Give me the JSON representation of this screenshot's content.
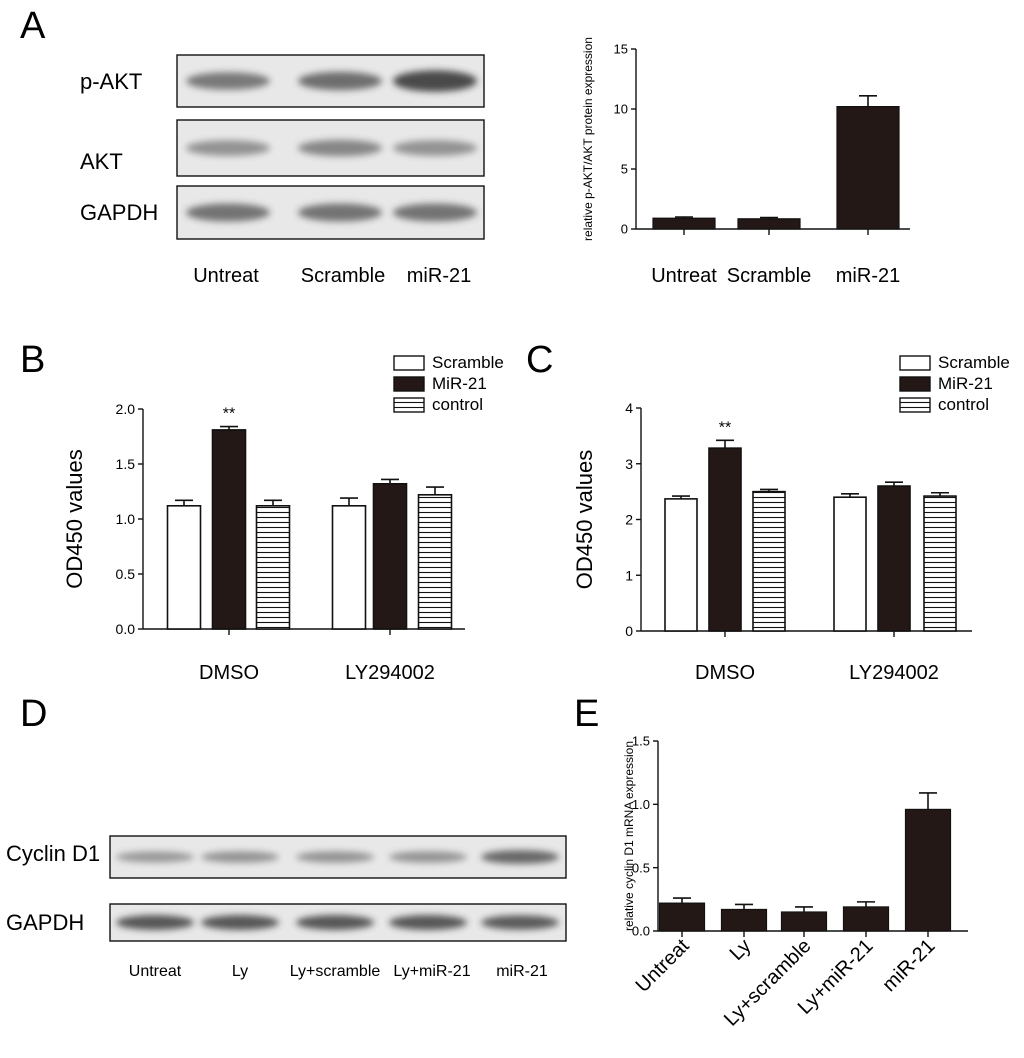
{
  "figure": {
    "panel_labels": {
      "a": "A",
      "b": "B",
      "c": "C",
      "d": "D",
      "e": "E"
    }
  },
  "blot_a": {
    "rows": [
      "p-AKT",
      "AKT",
      "GAPDH"
    ],
    "lanes": [
      "Untreat",
      "Scramble",
      "miR-21"
    ],
    "band_intensity": {
      "p-AKT": [
        0.55,
        0.65,
        0.95
      ],
      "AKT": [
        0.35,
        0.45,
        0.35
      ],
      "GAPDH": [
        0.6,
        0.6,
        0.6
      ]
    }
  },
  "blot_d": {
    "rows": [
      "Cyclin D1",
      "GAPDH"
    ],
    "lanes": [
      "Untreat",
      "Ly",
      "Ly+scramble",
      "Ly+miR-21",
      "miR-21"
    ],
    "band_intensity": {
      "Cyclin D1": [
        0.3,
        0.35,
        0.35,
        0.35,
        0.7
      ],
      "GAPDH": [
        0.85,
        0.85,
        0.85,
        0.85,
        0.8
      ]
    }
  },
  "colors": {
    "bar_dark": "#231815",
    "axis": "#111111",
    "blot_bg": "#e8e8e8",
    "band": "#3a3a3a"
  },
  "chart_data": [
    {
      "id": "A",
      "type": "bar",
      "ylabel": "relative p-AKT/AKT protein expression",
      "categories": [
        "Untreat",
        "Scramble",
        "miR-21"
      ],
      "values": [
        0.9,
        0.85,
        10.2
      ],
      "errors": [
        0.1,
        0.1,
        0.9
      ],
      "yticks": [
        "0",
        "5",
        "10",
        "15"
      ],
      "ylim": [
        0,
        15
      ]
    },
    {
      "id": "B",
      "type": "bar",
      "ylabel": "OD450 values",
      "categories": [
        "DMSO",
        "LY294002"
      ],
      "series": [
        {
          "name": "Scramble",
          "fill": "open",
          "values": [
            1.12,
            1.12
          ],
          "errors": [
            0.05,
            0.07
          ]
        },
        {
          "name": "MiR-21",
          "fill": "dark",
          "values": [
            1.81,
            1.32
          ],
          "errors": [
            0.03,
            0.04
          ]
        },
        {
          "name": "control",
          "fill": "striped",
          "values": [
            1.12,
            1.22
          ],
          "errors": [
            0.05,
            0.07
          ]
        }
      ],
      "annotations": [
        "**"
      ],
      "yticks": [
        "0.0",
        "0.5",
        "1.0",
        "1.5",
        "2.0"
      ],
      "ylim": [
        0,
        2.0
      ]
    },
    {
      "id": "C",
      "type": "bar",
      "ylabel": "OD450 values",
      "categories": [
        "DMSO",
        "LY294002"
      ],
      "series": [
        {
          "name": "Scramble",
          "fill": "open",
          "values": [
            2.37,
            2.4
          ],
          "errors": [
            0.05,
            0.06
          ]
        },
        {
          "name": "MiR-21",
          "fill": "dark",
          "values": [
            3.28,
            2.6
          ],
          "errors": [
            0.14,
            0.07
          ]
        },
        {
          "name": "control",
          "fill": "striped",
          "values": [
            2.5,
            2.42
          ],
          "errors": [
            0.04,
            0.06
          ]
        }
      ],
      "annotations": [
        "**"
      ],
      "yticks": [
        "0",
        "1",
        "2",
        "3",
        "4"
      ],
      "ylim": [
        0,
        4
      ]
    },
    {
      "id": "E",
      "type": "bar",
      "ylabel": "relative cyclin D1 mRNA expression",
      "categories": [
        "Untreat",
        "Ly",
        "Ly+scramble",
        "Ly+miR-21",
        "miR-21"
      ],
      "values": [
        0.22,
        0.17,
        0.15,
        0.19,
        0.96
      ],
      "errors": [
        0.04,
        0.04,
        0.04,
        0.04,
        0.13
      ],
      "yticks": [
        "0.0",
        "0.5",
        "1.0",
        "1.5"
      ],
      "ylim": [
        0,
        1.5
      ]
    }
  ]
}
